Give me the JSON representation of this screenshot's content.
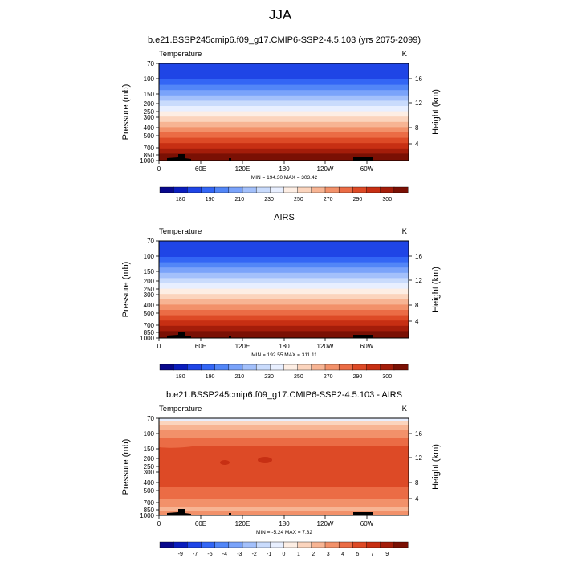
{
  "figure": {
    "title": "JJA"
  },
  "palettes": {
    "abs": [
      "#08088c",
      "#0a1dbd",
      "#1f45e6",
      "#3366f5",
      "#5286f7",
      "#7aa3fa",
      "#a3c0fb",
      "#c9dbfc",
      "#e8efff",
      "#fdeee4",
      "#fbd4bd",
      "#f7b493",
      "#f2916a",
      "#eb6c45",
      "#dd4a26",
      "#c72f13",
      "#a41d0a",
      "#7a1004"
    ],
    "diff": [
      "#08088c",
      "#0a1dbd",
      "#1f45e6",
      "#3366f5",
      "#5286f7",
      "#7aa3fa",
      "#a3c0fb",
      "#c9dbfc",
      "#e8efff",
      "#fdeee4",
      "#fbd4bd",
      "#f7b493",
      "#f2916a",
      "#eb6c45",
      "#dd4a26",
      "#c72f13",
      "#a41d0a",
      "#7a1004"
    ]
  },
  "chart_data": [
    {
      "type": "heatmap",
      "title": "b.e21.BSSP245cmip6.f09_g17.CMIP6-SSP2-4.5.103 (yrs 2075-2099)",
      "variable": "Temperature",
      "units": "K",
      "xlabel": "",
      "ylabel": "Pressure (mb)",
      "ylabel_right": "Height (km)",
      "x_ticks": [
        "0",
        "60E",
        "120E",
        "180",
        "120W",
        "60W"
      ],
      "y_ticks": [
        "70",
        "100",
        "150",
        "200",
        "250",
        "300",
        "400",
        "500",
        "700",
        "850",
        "1000"
      ],
      "y_ticks_right": [
        "16",
        "12",
        "8",
        "4"
      ],
      "minmax": "MIN = 194.30   MAX = 303.42",
      "min": 194.3,
      "max": 303.42,
      "colorbar": {
        "palette": "abs",
        "labels": [
          "180",
          "190",
          "210",
          "230",
          "250",
          "270",
          "290",
          "300"
        ]
      }
    },
    {
      "type": "heatmap",
      "title": "AIRS",
      "variable": "Temperature",
      "units": "K",
      "xlabel": "",
      "ylabel": "Pressure (mb)",
      "ylabel_right": "Height (km)",
      "x_ticks": [
        "0",
        "60E",
        "120E",
        "180",
        "120W",
        "60W"
      ],
      "y_ticks": [
        "70",
        "100",
        "150",
        "200",
        "250",
        "300",
        "400",
        "500",
        "700",
        "850",
        "1000"
      ],
      "y_ticks_right": [
        "16",
        "12",
        "8",
        "4"
      ],
      "minmax": "MIN = 192.55   MAX = 311.11",
      "min": 192.55,
      "max": 311.11,
      "colorbar": {
        "palette": "abs",
        "labels": [
          "180",
          "190",
          "210",
          "230",
          "250",
          "270",
          "290",
          "300"
        ]
      }
    },
    {
      "type": "heatmap",
      "title": "b.e21.BSSP245cmip6.f09_g17.CMIP6-SSP2-4.5.103 - AIRS",
      "variable": "Temperature",
      "units": "K",
      "xlabel": "",
      "ylabel": "Pressure (mb)",
      "ylabel_right": "Height (km)",
      "x_ticks": [
        "0",
        "60E",
        "120E",
        "180",
        "120W",
        "60W"
      ],
      "y_ticks": [
        "70",
        "100",
        "150",
        "200",
        "250",
        "300",
        "400",
        "500",
        "700",
        "850",
        "1000"
      ],
      "y_ticks_right": [
        "16",
        "12",
        "8",
        "4"
      ],
      "minmax": "MIN = -5.24   MAX = 7.32",
      "min": -5.24,
      "max": 7.32,
      "colorbar": {
        "palette": "diff",
        "labels": [
          "-9",
          "-7",
          "-5",
          "-4",
          "-3",
          "-2",
          "-1",
          "0",
          "1",
          "2",
          "3",
          "4",
          "5",
          "7",
          "9"
        ]
      }
    }
  ]
}
